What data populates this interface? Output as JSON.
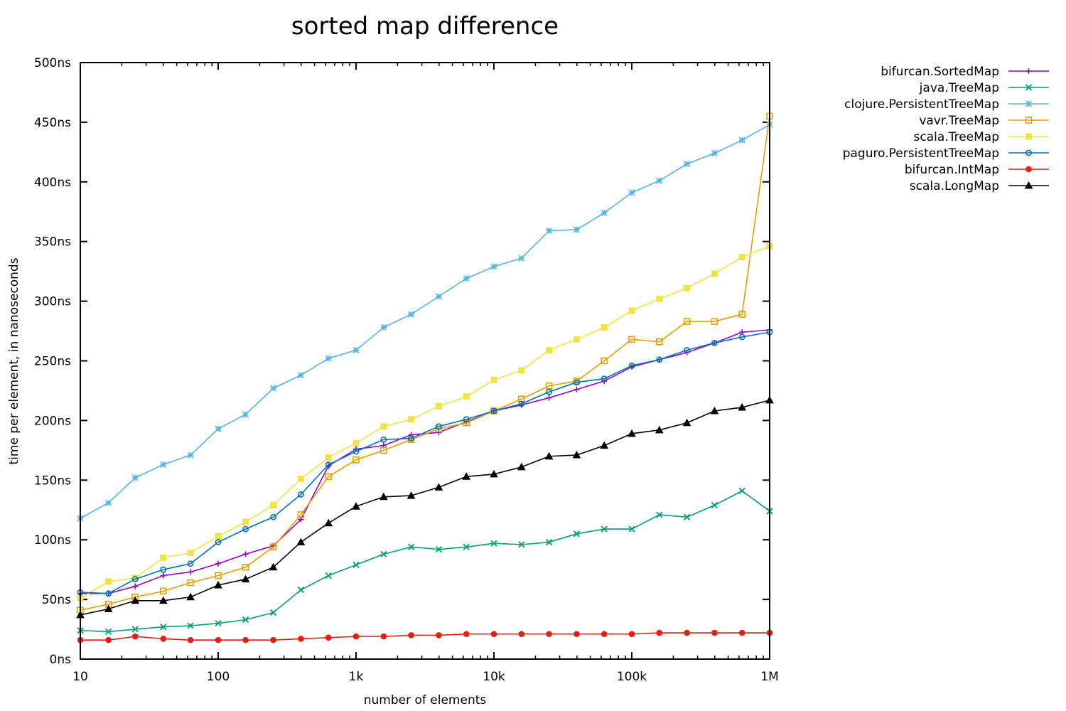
{
  "chart_data": {
    "type": "line",
    "title": "sorted map difference",
    "xlabel": "number of elements",
    "ylabel": "time per element, in nanoseconds",
    "xscale": "log",
    "xlim": [
      10,
      1000000
    ],
    "ylim": [
      0,
      500
    ],
    "legend_position": "top-right outside",
    "x_ticks": [
      {
        "value": 10,
        "label": "10"
      },
      {
        "value": 100,
        "label": "100"
      },
      {
        "value": 1000,
        "label": "1k"
      },
      {
        "value": 10000,
        "label": "10k"
      },
      {
        "value": 100000,
        "label": "100k"
      },
      {
        "value": 1000000,
        "label": "1M"
      }
    ],
    "y_ticks": [
      {
        "value": 0,
        "label": "0ns"
      },
      {
        "value": 50,
        "label": "50ns"
      },
      {
        "value": 100,
        "label": "100ns"
      },
      {
        "value": 150,
        "label": "150ns"
      },
      {
        "value": 200,
        "label": "200ns"
      },
      {
        "value": 250,
        "label": "250ns"
      },
      {
        "value": 300,
        "label": "300ns"
      },
      {
        "value": 350,
        "label": "350ns"
      },
      {
        "value": 400,
        "label": "400ns"
      },
      {
        "value": 450,
        "label": "450ns"
      },
      {
        "value": 500,
        "label": "500ns"
      }
    ],
    "x": [
      10,
      16,
      25,
      40,
      63,
      100,
      158,
      251,
      398,
      631,
      1000,
      1585,
      2512,
      3981,
      6310,
      10000,
      15849,
      25119,
      39811,
      63096,
      100000,
      158489,
      251189,
      398107,
      630957,
      1000000
    ],
    "series": [
      {
        "name": "bifurcan.SortedMap",
        "color": "#9400d3",
        "marker": "plus",
        "values": [
          55,
          55,
          61,
          70,
          73,
          80,
          88,
          95,
          117,
          162,
          176,
          179,
          188,
          190,
          199,
          208,
          213,
          219,
          226,
          233,
          245,
          251,
          257,
          265,
          274,
          276
        ]
      },
      {
        "name": "java.TreeMap",
        "color": "#009e73",
        "marker": "cross",
        "values": [
          24,
          23,
          25,
          27,
          28,
          30,
          33,
          39,
          58,
          70,
          79,
          88,
          94,
          92,
          94,
          97,
          96,
          98,
          105,
          109,
          109,
          121,
          119,
          129,
          141,
          124
        ]
      },
      {
        "name": "clojure.PersistentTreeMap",
        "color": "#56b4e9",
        "marker": "star",
        "values": [
          118,
          131,
          152,
          163,
          171,
          193,
          205,
          227,
          238,
          252,
          259,
          278,
          289,
          304,
          319,
          329,
          336,
          359,
          360,
          374,
          391,
          401,
          415,
          424,
          435,
          448
        ]
      },
      {
        "name": "vavr.TreeMap",
        "color": "#e69f00",
        "marker": "square",
        "values": [
          41,
          46,
          52,
          57,
          64,
          70,
          77,
          94,
          121,
          153,
          167,
          175,
          184,
          193,
          198,
          208,
          218,
          229,
          233,
          250,
          268,
          266,
          283,
          283,
          289,
          455
        ]
      },
      {
        "name": "scala.TreeMap",
        "color": "#f0e442",
        "marker": "filled-square",
        "values": [
          51,
          65,
          68,
          85,
          89,
          103,
          115,
          129,
          151,
          169,
          181,
          195,
          201,
          212,
          220,
          234,
          242,
          259,
          268,
          278,
          292,
          302,
          311,
          323,
          337,
          346
        ]
      },
      {
        "name": "paguro.PersistentTreeMap",
        "color": "#0072b2",
        "marker": "circle",
        "values": [
          56,
          55,
          67,
          75,
          80,
          98,
          109,
          119,
          138,
          163,
          174,
          184,
          185,
          195,
          201,
          208,
          214,
          224,
          232,
          235,
          246,
          251,
          259,
          265,
          270,
          274
        ]
      },
      {
        "name": "bifurcan.IntMap",
        "color": "#e51e10",
        "marker": "filled-circle",
        "values": [
          16,
          16,
          19,
          17,
          16,
          16,
          16,
          16,
          17,
          18,
          19,
          19,
          20,
          20,
          21,
          21,
          21,
          21,
          21,
          21,
          21,
          22,
          22,
          22,
          22,
          22
        ]
      },
      {
        "name": "scala.LongMap",
        "color": "#000000",
        "marker": "filled-triangle",
        "values": [
          37,
          42,
          49,
          49,
          52,
          62,
          67,
          77,
          98,
          114,
          128,
          136,
          137,
          144,
          153,
          155,
          161,
          170,
          171,
          179,
          189,
          192,
          198,
          208,
          211,
          217
        ]
      }
    ]
  }
}
